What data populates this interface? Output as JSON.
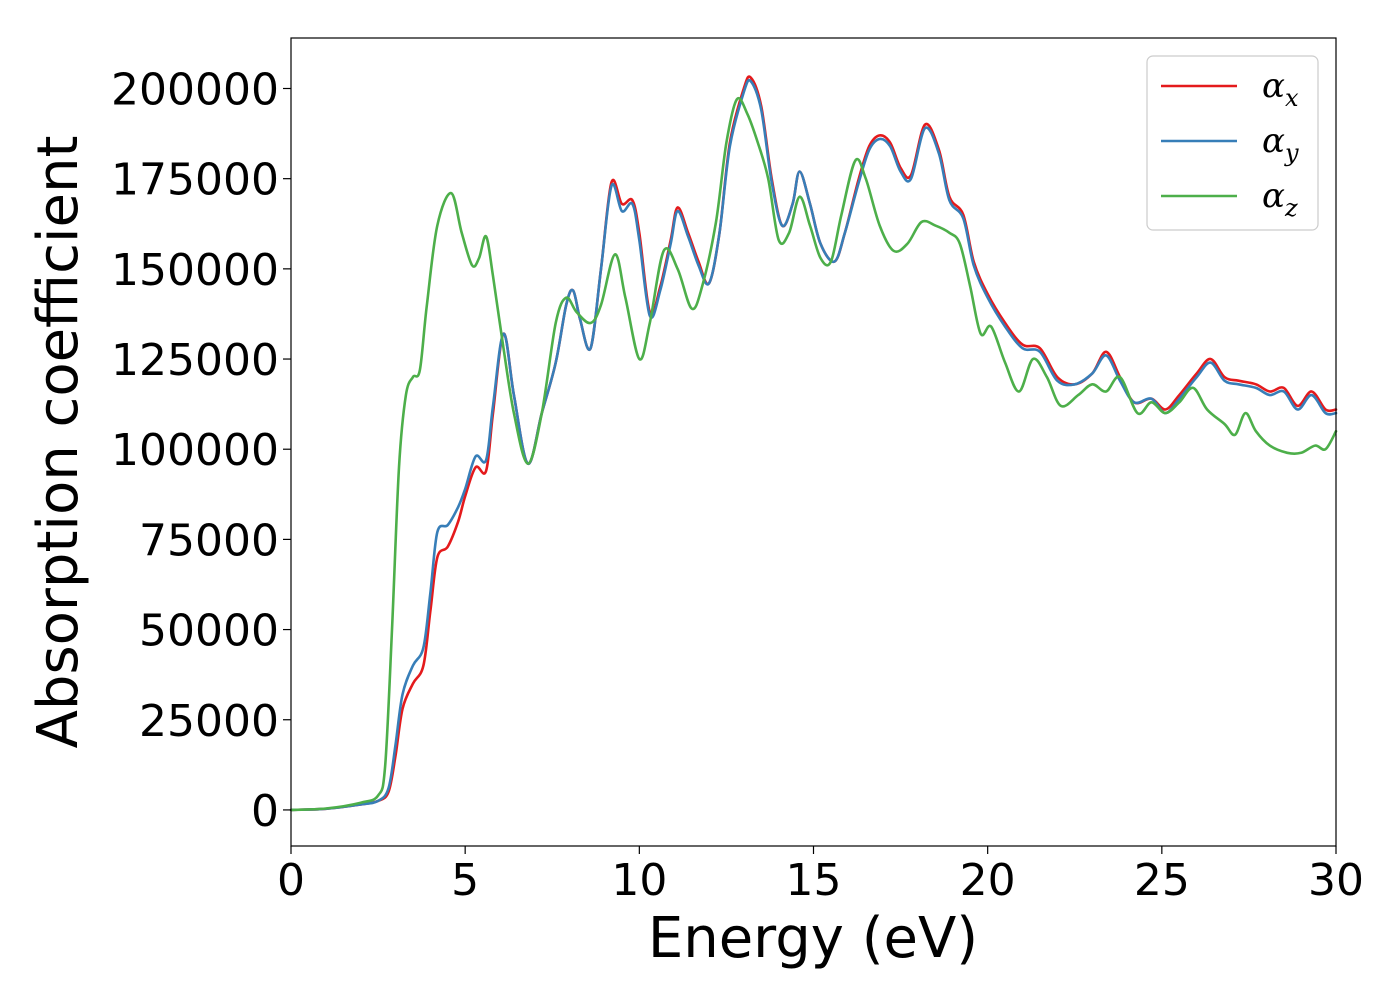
{
  "chart_data": {
    "type": "line",
    "xlabel": "Energy (eV)",
    "ylabel": "Absorption coefficient",
    "xlim": [
      0,
      30
    ],
    "ylim": [
      -10000,
      214000
    ],
    "x_ticks": [
      0,
      5,
      10,
      15,
      20,
      25,
      30
    ],
    "x_tick_labels": [
      "0",
      "5",
      "10",
      "15",
      "20",
      "25",
      "30"
    ],
    "y_ticks": [
      0,
      25000,
      50000,
      75000,
      100000,
      125000,
      150000,
      175000,
      200000
    ],
    "y_tick_labels": [
      "0",
      "25000",
      "50000",
      "75000",
      "100000",
      "125000",
      "150000",
      "175000",
      "200000"
    ],
    "grid": false,
    "legend_position": "top-right",
    "series": [
      {
        "name": "αx",
        "symbol": "α",
        "subscript": "x",
        "color": "#e41a1c",
        "points": [
          [
            0,
            0
          ],
          [
            1,
            300
          ],
          [
            2,
            1500
          ],
          [
            2.5,
            2500
          ],
          [
            2.8,
            5000
          ],
          [
            3.0,
            15000
          ],
          [
            3.2,
            28000
          ],
          [
            3.5,
            35000
          ],
          [
            3.8,
            40000
          ],
          [
            4.0,
            55000
          ],
          [
            4.2,
            70000
          ],
          [
            4.5,
            73000
          ],
          [
            4.8,
            80000
          ],
          [
            5.0,
            87000
          ],
          [
            5.3,
            95000
          ],
          [
            5.6,
            94000
          ],
          [
            5.8,
            110000
          ],
          [
            6.1,
            132000
          ],
          [
            6.4,
            115000
          ],
          [
            6.8,
            96000
          ],
          [
            7.2,
            110000
          ],
          [
            7.6,
            124000
          ],
          [
            7.9,
            140000
          ],
          [
            8.1,
            144000
          ],
          [
            8.3,
            136000
          ],
          [
            8.6,
            128000
          ],
          [
            8.9,
            150000
          ],
          [
            9.2,
            174000
          ],
          [
            9.5,
            168000
          ],
          [
            9.8,
            169000
          ],
          [
            10.0,
            160000
          ],
          [
            10.3,
            138000
          ],
          [
            10.6,
            145000
          ],
          [
            10.9,
            158000
          ],
          [
            11.1,
            167000
          ],
          [
            11.4,
            160000
          ],
          [
            11.7,
            152000
          ],
          [
            12.0,
            146000
          ],
          [
            12.3,
            160000
          ],
          [
            12.6,
            185000
          ],
          [
            13.0,
            200000
          ],
          [
            13.2,
            203000
          ],
          [
            13.5,
            195000
          ],
          [
            13.8,
            175000
          ],
          [
            14.1,
            162000
          ],
          [
            14.4,
            168000
          ],
          [
            14.6,
            177000
          ],
          [
            14.9,
            168000
          ],
          [
            15.2,
            157000
          ],
          [
            15.6,
            152000
          ],
          [
            15.9,
            160000
          ],
          [
            16.3,
            175000
          ],
          [
            16.6,
            184000
          ],
          [
            16.9,
            187000
          ],
          [
            17.2,
            185000
          ],
          [
            17.5,
            178000
          ],
          [
            17.8,
            176000
          ],
          [
            18.2,
            190000
          ],
          [
            18.6,
            183000
          ],
          [
            18.9,
            170000
          ],
          [
            19.3,
            165000
          ],
          [
            19.6,
            152000
          ],
          [
            20.0,
            143000
          ],
          [
            20.5,
            135000
          ],
          [
            21.0,
            129000
          ],
          [
            21.5,
            128000
          ],
          [
            22.0,
            120000
          ],
          [
            22.5,
            118000
          ],
          [
            23.0,
            121000
          ],
          [
            23.4,
            127000
          ],
          [
            23.8,
            120000
          ],
          [
            24.2,
            113000
          ],
          [
            24.7,
            114000
          ],
          [
            25.1,
            111000
          ],
          [
            25.5,
            115000
          ],
          [
            26.0,
            121000
          ],
          [
            26.4,
            125000
          ],
          [
            26.8,
            120000
          ],
          [
            27.2,
            119000
          ],
          [
            27.7,
            118000
          ],
          [
            28.1,
            116000
          ],
          [
            28.5,
            117000
          ],
          [
            28.9,
            112000
          ],
          [
            29.3,
            116000
          ],
          [
            29.7,
            111000
          ],
          [
            30.0,
            111000
          ]
        ]
      },
      {
        "name": "αy",
        "symbol": "α",
        "subscript": "y",
        "color": "#377eb8",
        "points": [
          [
            0,
            0
          ],
          [
            1,
            300
          ],
          [
            2,
            1500
          ],
          [
            2.5,
            2500
          ],
          [
            2.8,
            6000
          ],
          [
            3.0,
            18000
          ],
          [
            3.2,
            32000
          ],
          [
            3.5,
            40000
          ],
          [
            3.8,
            45000
          ],
          [
            4.0,
            60000
          ],
          [
            4.2,
            77000
          ],
          [
            4.5,
            79000
          ],
          [
            4.8,
            84000
          ],
          [
            5.0,
            89000
          ],
          [
            5.3,
            98000
          ],
          [
            5.6,
            97000
          ],
          [
            5.8,
            112000
          ],
          [
            6.1,
            132000
          ],
          [
            6.4,
            115000
          ],
          [
            6.8,
            96000
          ],
          [
            7.2,
            110000
          ],
          [
            7.6,
            124000
          ],
          [
            7.9,
            140000
          ],
          [
            8.1,
            144000
          ],
          [
            8.3,
            136000
          ],
          [
            8.6,
            128000
          ],
          [
            8.9,
            150000
          ],
          [
            9.2,
            173000
          ],
          [
            9.5,
            166000
          ],
          [
            9.8,
            168000
          ],
          [
            10.0,
            158000
          ],
          [
            10.3,
            137000
          ],
          [
            10.6,
            144000
          ],
          [
            10.9,
            157000
          ],
          [
            11.1,
            166000
          ],
          [
            11.4,
            159000
          ],
          [
            11.7,
            151000
          ],
          [
            12.0,
            146000
          ],
          [
            12.3,
            160000
          ],
          [
            12.6,
            184000
          ],
          [
            13.0,
            199000
          ],
          [
            13.2,
            202000
          ],
          [
            13.5,
            194000
          ],
          [
            13.8,
            174000
          ],
          [
            14.1,
            162000
          ],
          [
            14.4,
            168000
          ],
          [
            14.6,
            177000
          ],
          [
            14.9,
            168000
          ],
          [
            15.2,
            157000
          ],
          [
            15.6,
            152000
          ],
          [
            15.9,
            160000
          ],
          [
            16.3,
            174000
          ],
          [
            16.6,
            183000
          ],
          [
            16.9,
            186000
          ],
          [
            17.2,
            184000
          ],
          [
            17.5,
            177000
          ],
          [
            17.8,
            175000
          ],
          [
            18.2,
            189000
          ],
          [
            18.6,
            182000
          ],
          [
            18.9,
            169000
          ],
          [
            19.3,
            164000
          ],
          [
            19.6,
            151000
          ],
          [
            20.0,
            142000
          ],
          [
            20.5,
            134000
          ],
          [
            21.0,
            128000
          ],
          [
            21.5,
            127000
          ],
          [
            22.0,
            119000
          ],
          [
            22.5,
            118000
          ],
          [
            23.0,
            121000
          ],
          [
            23.4,
            126000
          ],
          [
            23.8,
            119000
          ],
          [
            24.2,
            113000
          ],
          [
            24.7,
            114000
          ],
          [
            25.1,
            110000
          ],
          [
            25.5,
            114000
          ],
          [
            26.0,
            120000
          ],
          [
            26.4,
            124000
          ],
          [
            26.8,
            119000
          ],
          [
            27.2,
            118000
          ],
          [
            27.7,
            117000
          ],
          [
            28.1,
            115000
          ],
          [
            28.5,
            116000
          ],
          [
            28.9,
            111000
          ],
          [
            29.3,
            115000
          ],
          [
            29.7,
            110000
          ],
          [
            30.0,
            110000
          ]
        ]
      },
      {
        "name": "αz",
        "symbol": "α",
        "subscript": "z",
        "color": "#4daf4a",
        "points": [
          [
            0,
            0
          ],
          [
            1,
            400
          ],
          [
            2,
            2000
          ],
          [
            2.5,
            4000
          ],
          [
            2.7,
            12000
          ],
          [
            2.9,
            50000
          ],
          [
            3.1,
            95000
          ],
          [
            3.3,
            115000
          ],
          [
            3.5,
            120000
          ],
          [
            3.7,
            122000
          ],
          [
            3.9,
            140000
          ],
          [
            4.2,
            162000
          ],
          [
            4.6,
            171000
          ],
          [
            4.9,
            160000
          ],
          [
            5.2,
            151000
          ],
          [
            5.4,
            153000
          ],
          [
            5.6,
            159000
          ],
          [
            5.8,
            148000
          ],
          [
            6.1,
            128000
          ],
          [
            6.4,
            110000
          ],
          [
            6.8,
            96000
          ],
          [
            7.2,
            110000
          ],
          [
            7.6,
            135000
          ],
          [
            7.9,
            142000
          ],
          [
            8.2,
            138000
          ],
          [
            8.6,
            135000
          ],
          [
            8.9,
            140000
          ],
          [
            9.3,
            154000
          ],
          [
            9.6,
            142000
          ],
          [
            10.0,
            125000
          ],
          [
            10.3,
            135000
          ],
          [
            10.7,
            155000
          ],
          [
            11.1,
            150000
          ],
          [
            11.5,
            139000
          ],
          [
            11.8,
            145000
          ],
          [
            12.2,
            163000
          ],
          [
            12.5,
            185000
          ],
          [
            12.8,
            197000
          ],
          [
            13.1,
            193000
          ],
          [
            13.4,
            185000
          ],
          [
            13.7,
            175000
          ],
          [
            14.0,
            158000
          ],
          [
            14.3,
            160000
          ],
          [
            14.6,
            170000
          ],
          [
            14.9,
            162000
          ],
          [
            15.2,
            153000
          ],
          [
            15.5,
            152000
          ],
          [
            15.8,
            165000
          ],
          [
            16.2,
            180000
          ],
          [
            16.5,
            175000
          ],
          [
            16.9,
            162000
          ],
          [
            17.3,
            155000
          ],
          [
            17.7,
            157000
          ],
          [
            18.1,
            163000
          ],
          [
            18.5,
            162000
          ],
          [
            18.9,
            160000
          ],
          [
            19.2,
            157000
          ],
          [
            19.5,
            145000
          ],
          [
            19.8,
            132000
          ],
          [
            20.1,
            134000
          ],
          [
            20.5,
            124000
          ],
          [
            20.9,
            116000
          ],
          [
            21.3,
            125000
          ],
          [
            21.7,
            120000
          ],
          [
            22.1,
            112000
          ],
          [
            22.6,
            115000
          ],
          [
            23.0,
            118000
          ],
          [
            23.4,
            116000
          ],
          [
            23.8,
            120000
          ],
          [
            24.3,
            110000
          ],
          [
            24.7,
            113000
          ],
          [
            25.1,
            110000
          ],
          [
            25.5,
            113000
          ],
          [
            25.9,
            117000
          ],
          [
            26.3,
            111000
          ],
          [
            26.8,
            107000
          ],
          [
            27.1,
            104000
          ],
          [
            27.4,
            110000
          ],
          [
            27.7,
            105000
          ],
          [
            28.1,
            101000
          ],
          [
            28.6,
            99000
          ],
          [
            29.0,
            99000
          ],
          [
            29.4,
            101000
          ],
          [
            29.7,
            100000
          ],
          [
            30.0,
            105000
          ]
        ]
      }
    ]
  }
}
